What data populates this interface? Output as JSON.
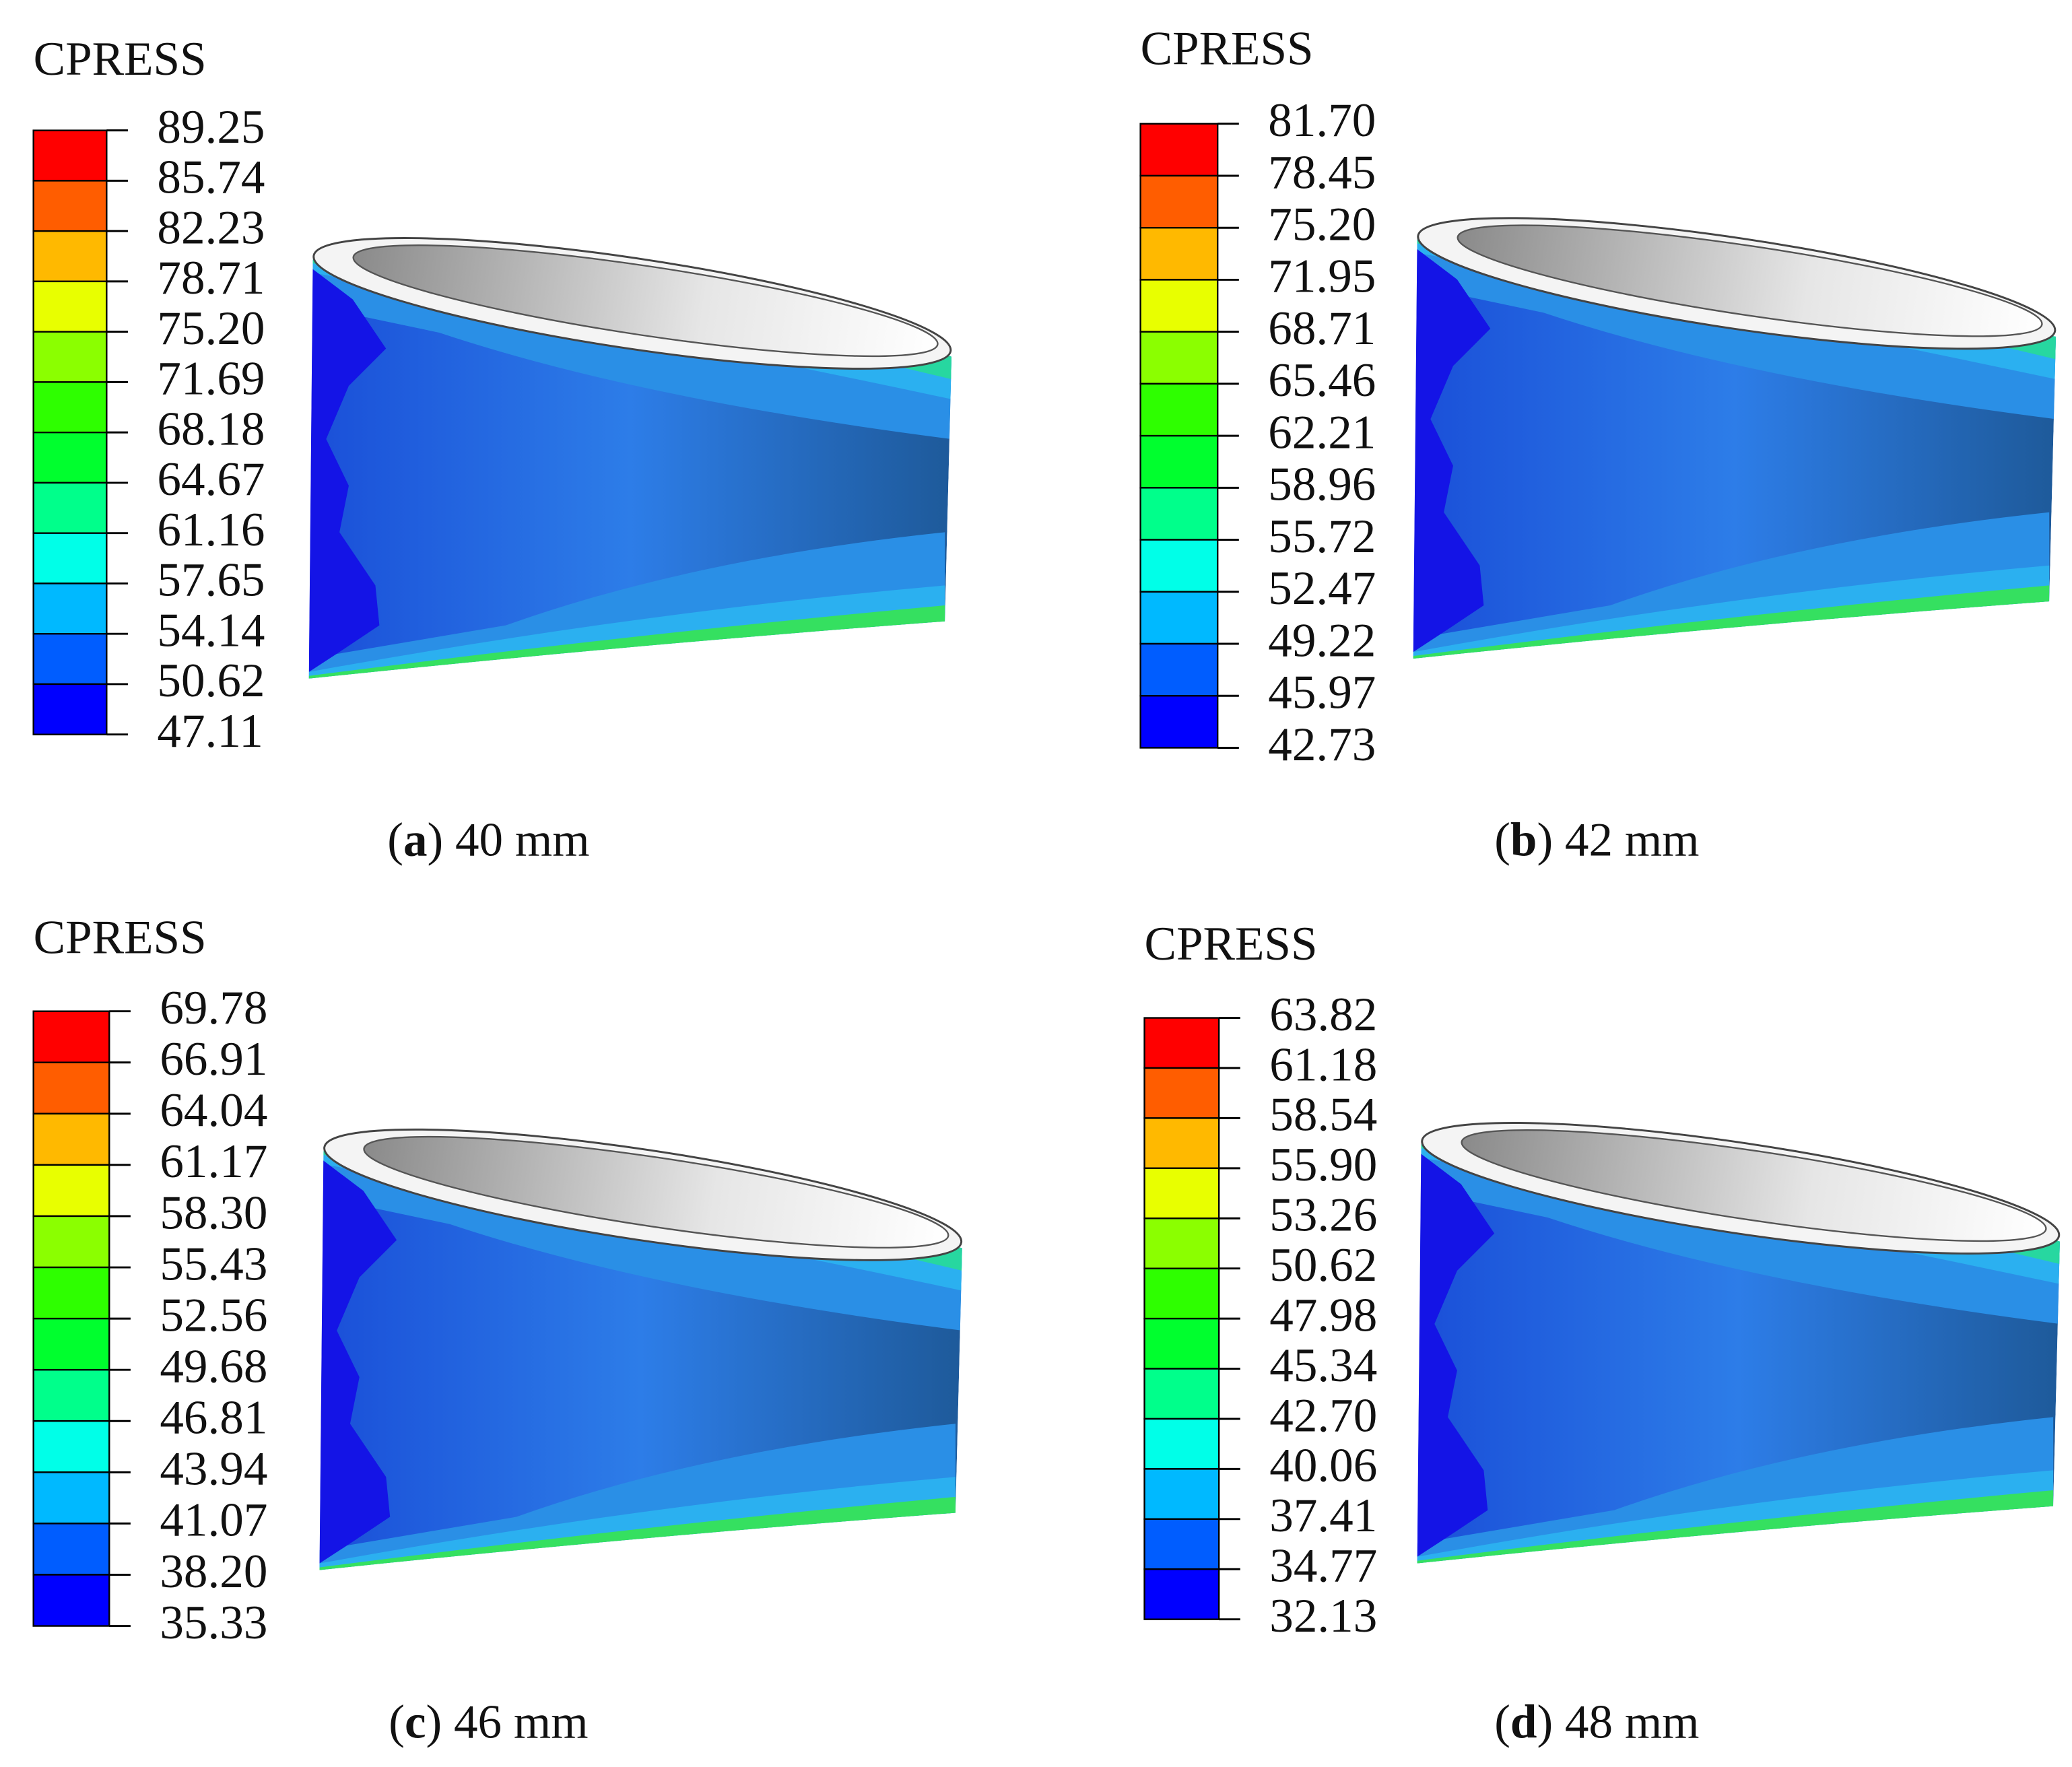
{
  "panels": [
    {
      "legend_title": "CPRESS",
      "ticks": [
        "89.25",
        "85.74",
        "82.23",
        "78.71",
        "75.20",
        "71.69",
        "68.18",
        "64.67",
        "61.16",
        "57.65",
        "54.14",
        "50.62",
        "47.11"
      ],
      "caption": {
        "open": "(",
        "letter": "a",
        "rest": ") 40 mm"
      }
    },
    {
      "legend_title": "CPRESS",
      "ticks": [
        "81.70",
        "78.45",
        "75.20",
        "71.95",
        "68.71",
        "65.46",
        "62.21",
        "58.96",
        "55.72",
        "52.47",
        "49.22",
        "45.97",
        "42.73"
      ],
      "caption": {
        "open": "(",
        "letter": "b",
        "rest": ") 42 mm"
      }
    },
    {
      "legend_title": "CPRESS",
      "ticks": [
        "69.78",
        "66.91",
        "64.04",
        "61.17",
        "58.30",
        "55.43",
        "52.56",
        "49.68",
        "46.81",
        "43.94",
        "41.07",
        "38.20",
        "35.33"
      ],
      "caption": {
        "open": "(",
        "letter": "c",
        "rest": ") 46 mm"
      }
    },
    {
      "legend_title": "CPRESS",
      "ticks": [
        "63.82",
        "61.18",
        "58.54",
        "55.90",
        "53.26",
        "50.62",
        "47.98",
        "45.34",
        "42.70",
        "40.06",
        "37.41",
        "34.77",
        "32.13"
      ],
      "caption": {
        "open": "(",
        "letter": "d",
        "rest": ") 48 mm"
      }
    }
  ]
}
